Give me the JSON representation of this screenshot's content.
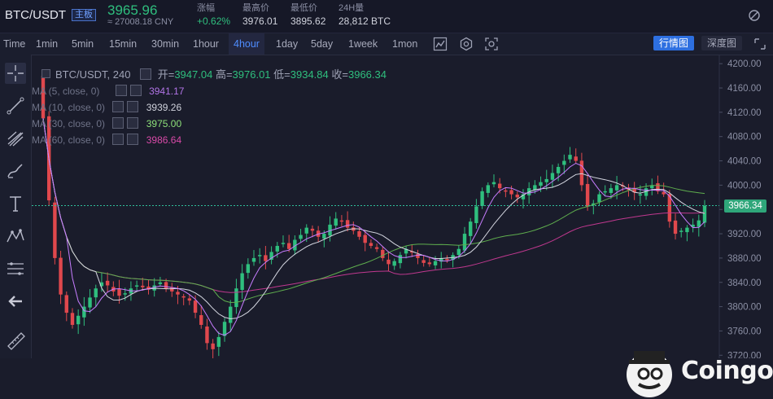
{
  "ticker": {
    "symbol": "BTC/USDT",
    "board_tag": "主板",
    "price": "3965.96",
    "cny": "≈ 27008.18 CNY",
    "stats": [
      {
        "label": "涨幅",
        "value": "+0.62%",
        "up": true
      },
      {
        "label": "最高价",
        "value": "3976.01",
        "up": false
      },
      {
        "label": "最低价",
        "value": "3895.62",
        "up": false
      },
      {
        "label": "24H量",
        "value": "28,812 BTC",
        "up": false
      }
    ]
  },
  "toolbar": {
    "timeframes": [
      "Time",
      "1min",
      "5min",
      "15min",
      "30min",
      "1hour",
      "4hour",
      "1day",
      "5day",
      "1week",
      "1mon"
    ],
    "active_timeframe": "4hour",
    "tab_market": "行情图",
    "tab_depth": "深度图"
  },
  "chart": {
    "series_title": "BTC/USDT, 240",
    "open_label": "开=",
    "open": "3947.04",
    "high_label": "高=",
    "high": "3976.01",
    "low_label": "低=",
    "low": "3934.84",
    "close_label": "收=",
    "close": "3966.34",
    "last_price_label": "3966.34",
    "ma_legend": [
      {
        "label": "MA (5, close, 0)",
        "value": "3941.17",
        "color": "#c77dff"
      },
      {
        "label": "MA (10, close, 0)",
        "value": "3939.26",
        "color": "#c8cad6"
      },
      {
        "label": "MA (30, close, 0)",
        "value": "3975.00",
        "color": "#7ee06f"
      },
      {
        "label": "MA (60, close, 0)",
        "value": "3986.64",
        "color": "#d23a9a"
      }
    ],
    "price_axis": [
      "4200.00",
      "4160.00",
      "4120.00",
      "4080.00",
      "4040.00",
      "4000.00",
      "3960.00",
      "3920.00",
      "3880.00",
      "3840.00",
      "3800.00",
      "3760.00",
      "3720.00"
    ],
    "colors": {
      "up": "#2fbf7e",
      "down": "#e0484d",
      "ma5": "#c77dff",
      "ma10": "#d4d6e0",
      "ma30": "#5fae4e",
      "ma60": "#c0388f"
    }
  },
  "watermark": {
    "brand": "Coingogo"
  },
  "chart_data": {
    "type": "line",
    "title": "BTC/USDT, 240",
    "ylim": [
      3715,
      4215
    ],
    "y_ticks": [
      4200,
      4160,
      4120,
      4080,
      4040,
      4000,
      3960,
      3920,
      3880,
      3840,
      3800,
      3760,
      3720
    ],
    "close_series": [
      4110,
      3975,
      3880,
      3820,
      3790,
      3770,
      3785,
      3800,
      3815,
      3830,
      3840,
      3835,
      3825,
      3818,
      3822,
      3830,
      3835,
      3832,
      3828,
      3835,
      3840,
      3830,
      3825,
      3820,
      3815,
      3810,
      3790,
      3770,
      3740,
      3730,
      3750,
      3775,
      3800,
      3830,
      3855,
      3870,
      3880,
      3885,
      3875,
      3890,
      3900,
      3905,
      3895,
      3910,
      3918,
      3930,
      3925,
      3915,
      3920,
      3935,
      3945,
      3940,
      3930,
      3925,
      3915,
      3905,
      3900,
      3895,
      3880,
      3870,
      3875,
      3885,
      3895,
      3890,
      3880,
      3872,
      3870,
      3875,
      3880,
      3878,
      3885,
      3895,
      3920,
      3940,
      3965,
      3990,
      4000,
      4005,
      3995,
      3990,
      3985,
      3980,
      3985,
      3995,
      4000,
      4005,
      4010,
      4020,
      4030,
      4040,
      4050,
      4040,
      4000,
      3965,
      3970,
      3985,
      3990,
      3995,
      4000,
      3998,
      3992,
      3988,
      3985,
      3995,
      4000,
      3990,
      3985,
      3940,
      3920,
      3925,
      3930,
      3935,
      3942,
      3966
    ],
    "ma_current": {
      "MA5": 3941.17,
      "MA10": 3939.26,
      "MA30": 3975.0,
      "MA60": 3986.64
    },
    "last_price": 3966.34
  }
}
